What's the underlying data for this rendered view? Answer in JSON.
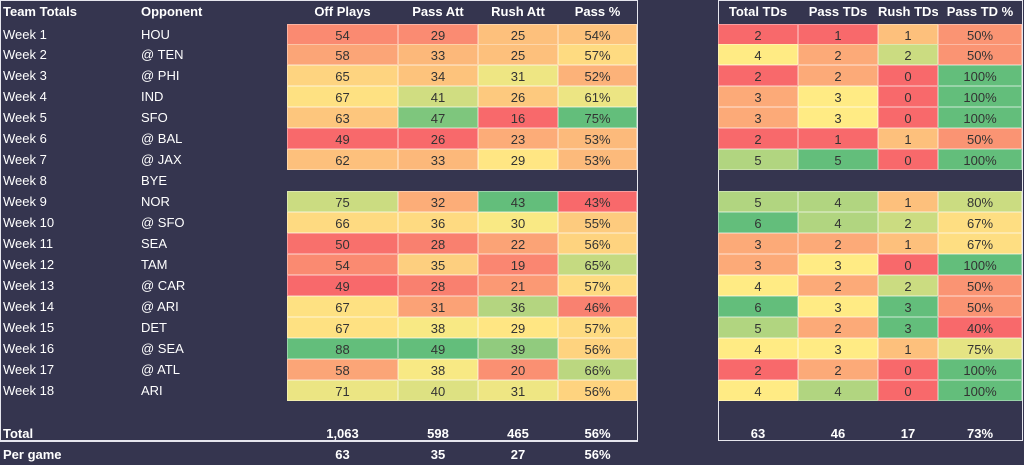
{
  "left_table": {
    "headers": [
      "Team Totals",
      "Opponent",
      "Off Plays",
      "Pass Att",
      "Rush Att",
      "Pass %"
    ],
    "rows": [
      [
        "Week 1",
        "HOU",
        "54",
        "29",
        "25",
        "54%"
      ],
      [
        "Week 2",
        "@ TEN",
        "58",
        "33",
        "25",
        "57%"
      ],
      [
        "Week 3",
        "@ PHI",
        "65",
        "34",
        "31",
        "52%"
      ],
      [
        "Week 4",
        "IND",
        "67",
        "41",
        "26",
        "61%"
      ],
      [
        "Week 5",
        "SFO",
        "63",
        "47",
        "16",
        "75%"
      ],
      [
        "Week 6",
        "@ BAL",
        "49",
        "26",
        "23",
        "53%"
      ],
      [
        "Week 7",
        "@ JAX",
        "62",
        "33",
        "29",
        "53%"
      ],
      [
        "Week 8",
        "BYE"
      ],
      [
        "Week 9",
        "NOR",
        "75",
        "32",
        "43",
        "43%"
      ],
      [
        "Week 10",
        "@ SFO",
        "66",
        "36",
        "30",
        "55%"
      ],
      [
        "Week 11",
        "SEA",
        "50",
        "28",
        "22",
        "56%"
      ],
      [
        "Week 12",
        "TAM",
        "54",
        "35",
        "19",
        "65%"
      ],
      [
        "Week 13",
        "@ CAR",
        "49",
        "28",
        "21",
        "57%"
      ],
      [
        "Week 14",
        "@ ARI",
        "67",
        "31",
        "36",
        "46%"
      ],
      [
        "Week 15",
        "DET",
        "67",
        "38",
        "29",
        "57%"
      ],
      [
        "Week 16",
        "@ SEA",
        "88",
        "49",
        "39",
        "56%"
      ],
      [
        "Week 17",
        "@ ATL",
        "58",
        "38",
        "20",
        "66%"
      ],
      [
        "Week 18",
        "ARI",
        "71",
        "40",
        "31",
        "56%"
      ]
    ],
    "totals": [
      "Total",
      "1,063",
      "598",
      "465",
      "56%"
    ],
    "per_game": [
      "Per game",
      "63",
      "35",
      "27",
      "56%"
    ]
  },
  "right_table": {
    "headers": [
      "Total TDs",
      "Pass TDs",
      "Rush TDs",
      "Pass TD %"
    ],
    "rows": [
      [
        "2",
        "1",
        "1",
        "50%"
      ],
      [
        "4",
        "2",
        "2",
        "50%"
      ],
      [
        "2",
        "2",
        "0",
        "100%"
      ],
      [
        "3",
        "3",
        "0",
        "100%"
      ],
      [
        "3",
        "3",
        "0",
        "100%"
      ],
      [
        "2",
        "1",
        "1",
        "50%"
      ],
      [
        "5",
        "5",
        "0",
        "100%"
      ],
      [],
      [
        "5",
        "4",
        "1",
        "80%"
      ],
      [
        "6",
        "4",
        "2",
        "67%"
      ],
      [
        "3",
        "2",
        "1",
        "67%"
      ],
      [
        "3",
        "3",
        "0",
        "100%"
      ],
      [
        "4",
        "2",
        "2",
        "50%"
      ],
      [
        "6",
        "3",
        "3",
        "50%"
      ],
      [
        "5",
        "2",
        "3",
        "40%"
      ],
      [
        "4",
        "3",
        "1",
        "75%"
      ],
      [
        "2",
        "2",
        "0",
        "100%"
      ],
      [
        "4",
        "4",
        "0",
        "100%"
      ]
    ],
    "totals": [
      "63",
      "46",
      "17",
      "73%"
    ]
  }
}
